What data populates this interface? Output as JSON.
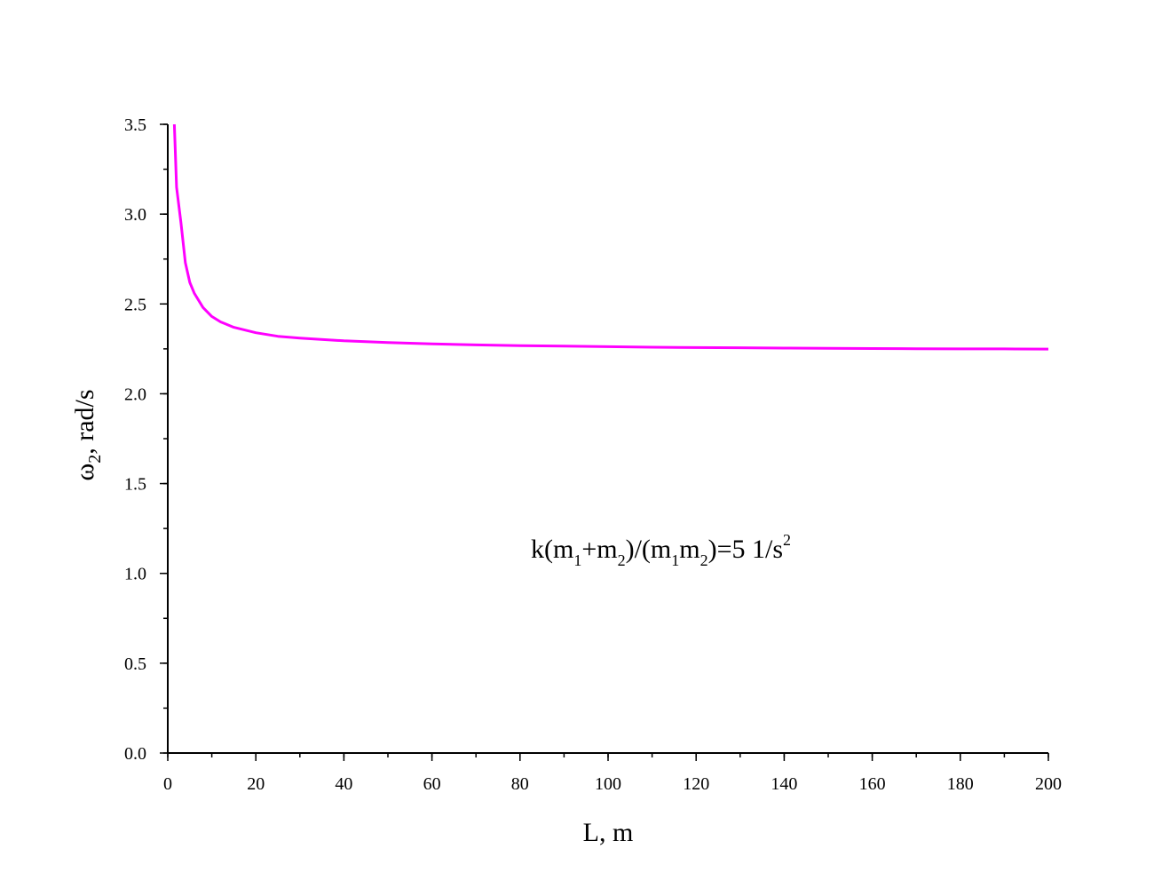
{
  "chart_data": {
    "type": "line",
    "title": "",
    "xlabel": "L, m",
    "ylabel": {
      "base": "ω",
      "sub": "2",
      "rest": ", rad/s"
    },
    "xlim": [
      0,
      200
    ],
    "ylim": [
      0.0,
      3.5
    ],
    "x_ticks": [
      "0",
      "20",
      "40",
      "60",
      "80",
      "100",
      "120",
      "140",
      "160",
      "180",
      "200"
    ],
    "y_ticks": [
      "0.0",
      "0.5",
      "1.0",
      "1.5",
      "2.0",
      "2.5",
      "3.0",
      "3.5"
    ],
    "x_minor_step": 10,
    "y_minor_step": 0.25,
    "grid": false,
    "line_color": "#ff00ff",
    "annotation": {
      "parts": [
        {
          "t": "k(m",
          "s": "n"
        },
        {
          "t": "1",
          "s": "sub"
        },
        {
          "t": "+m",
          "s": "n"
        },
        {
          "t": "2",
          "s": "sub"
        },
        {
          "t": ")/(m",
          "s": "n"
        },
        {
          "t": "1",
          "s": "sub"
        },
        {
          "t": "m",
          "s": "n"
        },
        {
          "t": "2",
          "s": "sub"
        },
        {
          "t": ")=5 1/s",
          "s": "n"
        },
        {
          "t": "2",
          "s": "sup"
        }
      ]
    },
    "series": [
      {
        "x": [
          1.5,
          2,
          3,
          4,
          5,
          6,
          8,
          10,
          12,
          15,
          20,
          25,
          30,
          40,
          50,
          60,
          70,
          80,
          90,
          100,
          110,
          120,
          130,
          140,
          150,
          160,
          170,
          180,
          190,
          200
        ],
        "y": [
          3.5,
          3.15,
          2.95,
          2.73,
          2.62,
          2.56,
          2.48,
          2.43,
          2.4,
          2.37,
          2.34,
          2.32,
          2.31,
          2.295,
          2.285,
          2.278,
          2.272,
          2.268,
          2.265,
          2.262,
          2.259,
          2.257,
          2.256,
          2.254,
          2.253,
          2.252,
          2.251,
          2.25,
          2.25,
          2.249
        ]
      }
    ]
  }
}
